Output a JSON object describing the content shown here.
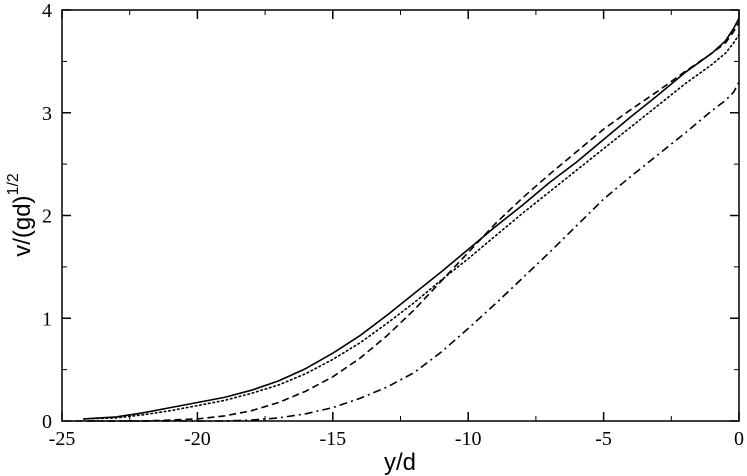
{
  "chart_data": {
    "type": "line",
    "title": "",
    "xlabel": "y/d",
    "ylabel_main": "v/(gd)",
    "ylabel_sup": "1/2",
    "xlim": [
      -25,
      0
    ],
    "ylim": [
      0,
      4
    ],
    "x_ticks": [
      -25,
      -20,
      -15,
      -10,
      -5,
      0
    ],
    "y_ticks": [
      0,
      1,
      2,
      3,
      4
    ],
    "x_tick_labels": [
      "-25",
      "-20",
      "-15",
      "-10",
      "-5",
      "0"
    ],
    "y_tick_labels": [
      "0",
      "1",
      "2",
      "3",
      "4"
    ],
    "grid": false,
    "legend": "none",
    "series": [
      {
        "style": "solid",
        "x": [
          -24.2,
          -23,
          -22,
          -21,
          -20,
          -19,
          -18,
          -17,
          -16,
          -15,
          -14,
          -13,
          -12,
          -11,
          -10,
          -9,
          -8,
          -7,
          -6,
          -5,
          -4,
          -3,
          -2,
          -1,
          -0.5,
          -0.2,
          0
        ],
        "y": [
          0.02,
          0.04,
          0.08,
          0.13,
          0.18,
          0.23,
          0.3,
          0.39,
          0.51,
          0.66,
          0.83,
          1.03,
          1.24,
          1.45,
          1.67,
          1.89,
          2.1,
          2.32,
          2.52,
          2.74,
          2.96,
          3.17,
          3.39,
          3.58,
          3.7,
          3.82,
          3.92
        ]
      },
      {
        "style": "dotted",
        "x": [
          -24.2,
          -23,
          -22,
          -21,
          -20,
          -19,
          -18,
          -17,
          -16,
          -15,
          -14,
          -13,
          -12,
          -11,
          -10,
          -9,
          -8,
          -7,
          -6,
          -5,
          -4,
          -3,
          -2,
          -1,
          -0.5,
          -0.2,
          0
        ],
        "y": [
          0.02,
          0.03,
          0.06,
          0.1,
          0.15,
          0.2,
          0.27,
          0.35,
          0.46,
          0.6,
          0.76,
          0.95,
          1.15,
          1.37,
          1.58,
          1.8,
          2.02,
          2.23,
          2.44,
          2.65,
          2.86,
          3.07,
          3.28,
          3.47,
          3.58,
          3.68,
          3.76
        ]
      },
      {
        "style": "dashed",
        "x": [
          -24.5,
          -22,
          -21,
          -20,
          -19,
          -18,
          -17,
          -16,
          -15,
          -14,
          -13,
          -12,
          -11,
          -10,
          -9,
          -8,
          -7,
          -6,
          -5,
          -4,
          -3,
          -2,
          -1,
          -0.5,
          -0.2,
          0
        ],
        "y": [
          0.0,
          0.0,
          0.01,
          0.02,
          0.05,
          0.1,
          0.18,
          0.29,
          0.43,
          0.61,
          0.83,
          1.08,
          1.36,
          1.64,
          1.92,
          2.17,
          2.4,
          2.62,
          2.84,
          3.03,
          3.21,
          3.4,
          3.58,
          3.68,
          3.79,
          3.88
        ]
      },
      {
        "style": "dashdot",
        "x": [
          -24,
          -19,
          -18,
          -17,
          -16,
          -15,
          -14,
          -13,
          -12,
          -11,
          -10,
          -9,
          -8,
          -7,
          -6,
          -5,
          -4,
          -3,
          -2,
          -1,
          -0.5,
          -0.2,
          0
        ],
        "y": [
          0.0,
          0.0,
          0.01,
          0.03,
          0.07,
          0.13,
          0.22,
          0.33,
          0.47,
          0.67,
          0.9,
          1.14,
          1.39,
          1.64,
          1.9,
          2.16,
          2.38,
          2.59,
          2.8,
          3.02,
          3.12,
          3.2,
          3.3
        ]
      }
    ]
  }
}
